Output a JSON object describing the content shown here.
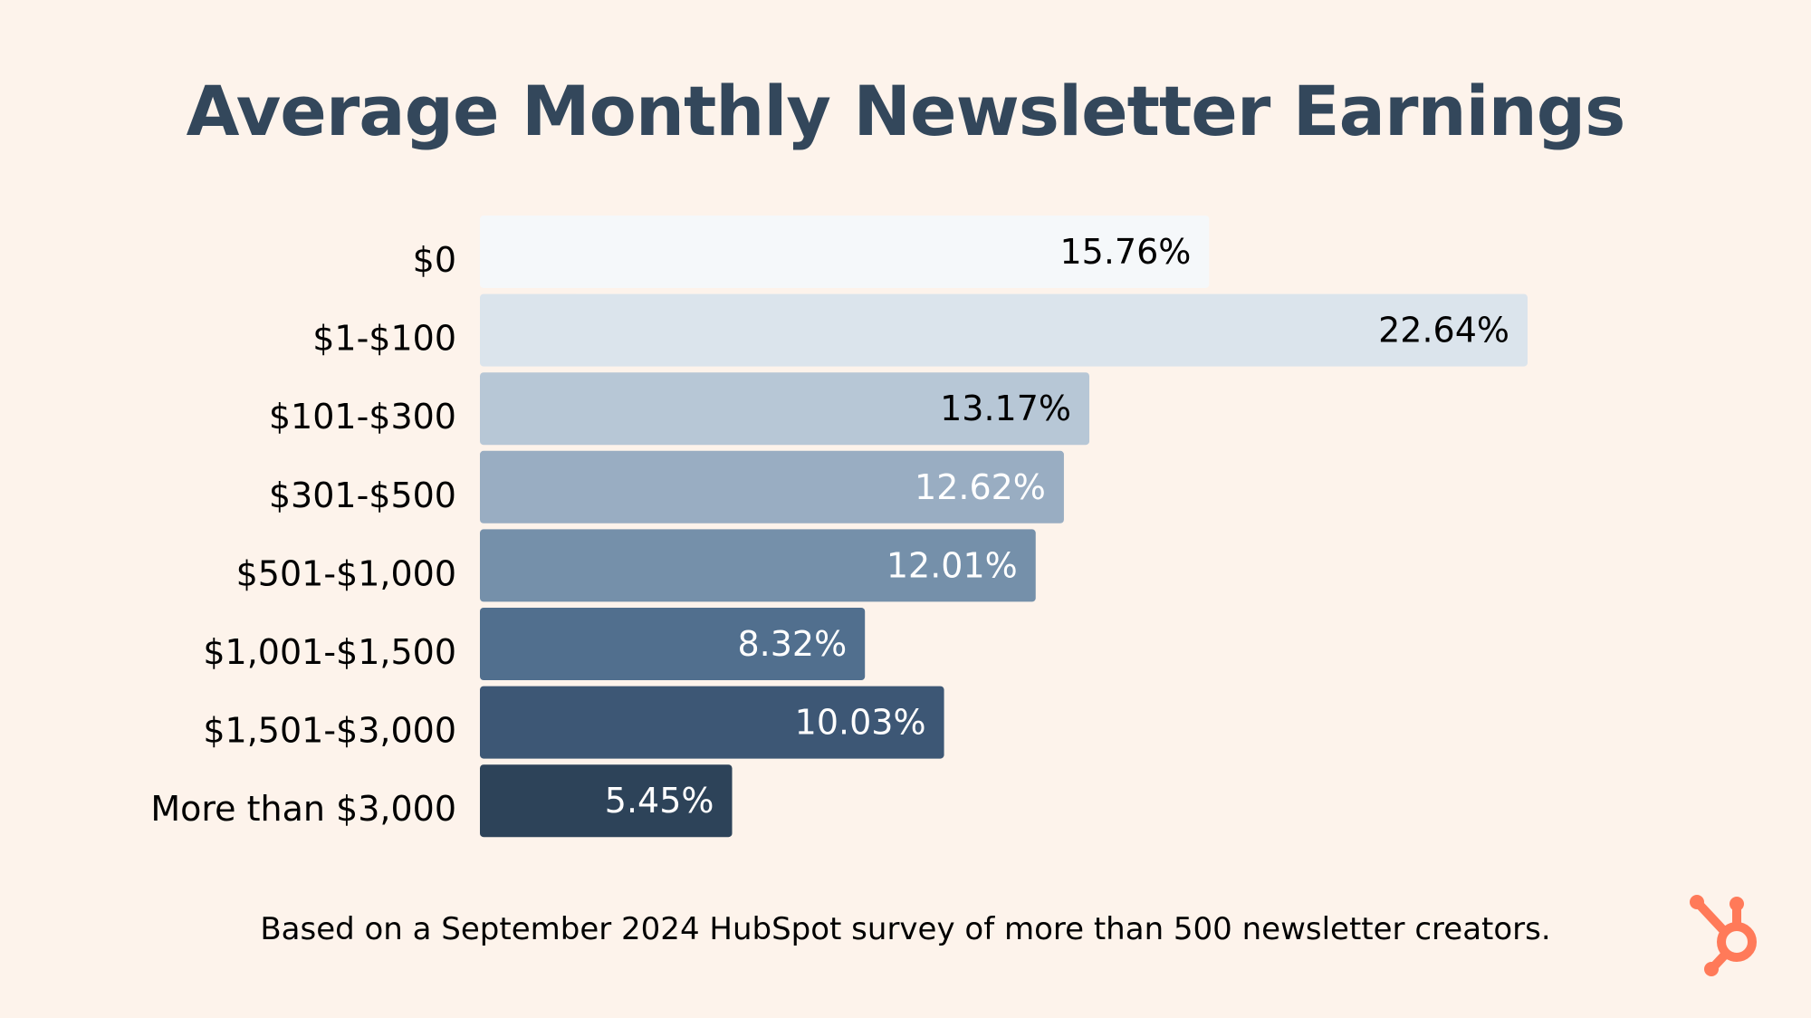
{
  "chart_data": {
    "type": "bar",
    "orientation": "horizontal",
    "title": "Average Monthly Newsletter Earnings",
    "categories": [
      "$0",
      "$1-$100",
      "$101-$300",
      "$301-$500",
      "$501-$1,000",
      "$1,001-$1,500",
      "$1,501-$3,000",
      "More than $3,000"
    ],
    "values": [
      15.76,
      22.64,
      13.17,
      12.62,
      12.01,
      8.32,
      10.03,
      5.45
    ],
    "value_labels": [
      "15.76%",
      "22.64%",
      "13.17%",
      "12.62%",
      "12.01%",
      "8.32%",
      "10.03%",
      "5.45%"
    ],
    "xlim": [
      0,
      22.64
    ],
    "grid": false,
    "legend": "none",
    "bar_colors": [
      "#f5f8fa",
      "#dbe4ec",
      "#b7c7d6",
      "#99adc2",
      "#7590aa",
      "#516f8e",
      "#3d5775",
      "#2d4359"
    ],
    "label_colors": [
      "#000000",
      "#000000",
      "#000000",
      "#ffffff",
      "#ffffff",
      "#ffffff",
      "#ffffff",
      "#ffffff"
    ]
  },
  "footnote": "Based on a September 2024 HubSpot survey of more than 500 newsletter creators.",
  "colors": {
    "background": "#fdf3eb",
    "title": "#33475b",
    "brand": "#ff7a59"
  },
  "logo": {
    "icon": "hubspot-sprocket-icon"
  }
}
